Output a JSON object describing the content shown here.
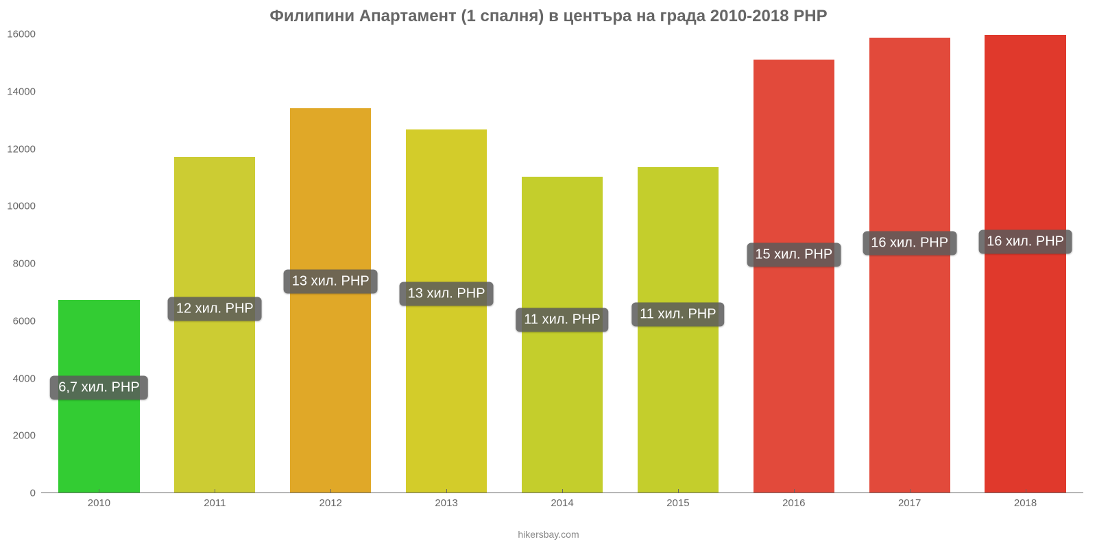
{
  "chart": {
    "type": "bar",
    "title": "Филипини Апартамент (1 спалня) в центъра на града 2010-2018 PHP",
    "title_fontsize": 24,
    "title_color": "#666666",
    "attribution": "hikersbay.com",
    "attribution_fontsize": 14,
    "background_color": "#ffffff",
    "axis_color": "#666666",
    "label_fontsize": 15,
    "ylim": [
      0,
      16000
    ],
    "ytick_step": 2000,
    "yticks": [
      0,
      2000,
      4000,
      6000,
      8000,
      10000,
      12000,
      14000,
      16000
    ],
    "categories": [
      "2010",
      "2011",
      "2012",
      "2013",
      "2014",
      "2015",
      "2016",
      "2017",
      "2018"
    ],
    "values": [
      6700,
      11700,
      13400,
      12650,
      11000,
      11350,
      15100,
      15850,
      15950
    ],
    "bar_colors": [
      "#33cc33",
      "#cccc33",
      "#e0a828",
      "#d3cc2a",
      "#c4ce2c",
      "#c4ce2c",
      "#e24a3b",
      "#e24a3b",
      "#e0392c"
    ],
    "bar_labels": [
      "6,7 хил. PHP",
      "12 хил. PHP",
      "13 хил. PHP",
      "13 хил. PHP",
      "11 хил. PHP",
      "11 хил. PHP",
      "15 хил. PHP",
      "16 хил. PHP",
      "16 хил. PHP"
    ],
    "bar_label_fontsize": 20,
    "bar_label_bg": "rgba(90,90,90,0.85)",
    "bar_label_color": "#ffffff",
    "bar_width": 0.7
  }
}
